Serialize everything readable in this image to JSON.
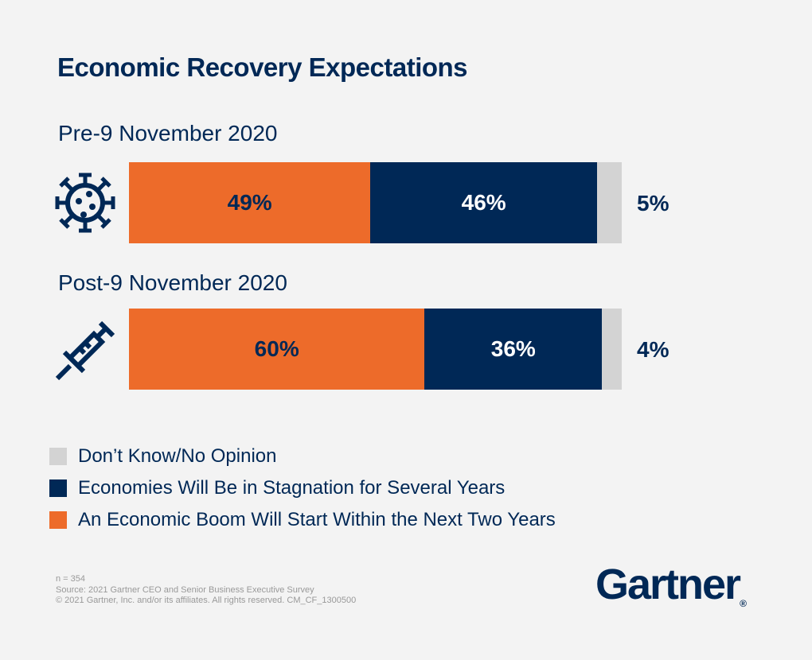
{
  "title": "Economic Recovery Expectations",
  "colors": {
    "boom": "#ED6B2A",
    "stagnation": "#002856",
    "dont_know": "#D3D3D3",
    "background": "#F3F3F3"
  },
  "chart_data": {
    "type": "bar",
    "orientation": "horizontal",
    "stacked": true,
    "title": "Economic Recovery Expectations",
    "categories": [
      "Pre-9 November 2020",
      "Post-9 November 2020"
    ],
    "category_icons": [
      "virus-icon",
      "syringe-icon"
    ],
    "series": [
      {
        "name": "An Economic Boom Will Start Within the Next Two Years",
        "values": [
          49,
          60
        ],
        "labels": [
          "49%",
          "60%"
        ]
      },
      {
        "name": "Economies Will Be in Stagnation for Several Years",
        "values": [
          46,
          36
        ],
        "labels": [
          "46%",
          "36%"
        ]
      },
      {
        "name": "Don’t Know/No Opinion",
        "values": [
          5,
          4
        ],
        "labels": [
          "5%",
          "4%"
        ]
      }
    ],
    "legend": [
      "Don’t Know/No Opinion",
      "Economies Will Be in Stagnation for Several Years",
      "An Economic Boom Will Start Within the Next Two Years"
    ],
    "legend_placement": "bottom-left",
    "grid": false
  },
  "footer": {
    "n": "n = 354",
    "source": "Source: 2021 Gartner CEO and Senior Business Executive Survey",
    "copyright": "© 2021 Gartner, Inc. and/or its affiliates. All rights reserved. CM_CF_1300500"
  },
  "logo": "Gartner"
}
